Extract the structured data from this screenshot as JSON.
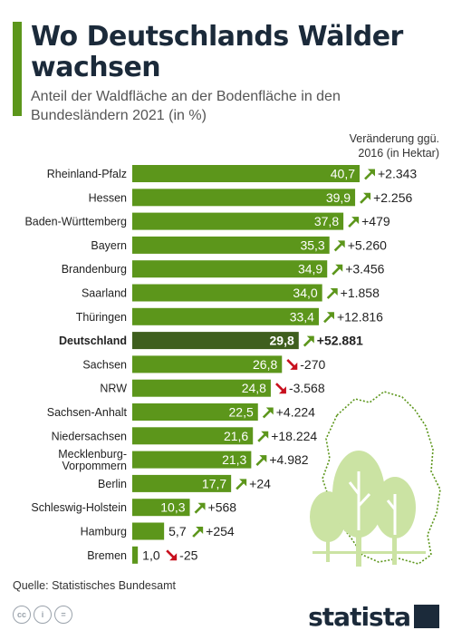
{
  "header": {
    "title": "Wo Deutschlands Wälder wachsen",
    "subtitle": "Anteil der Waldfläche an der Bodenfläche in den Bundesländern 2021 (in %)"
  },
  "legend": {
    "line1": "Veränderung ggü.",
    "line2": "2016 (in Hektar)"
  },
  "chart_data": {
    "type": "bar",
    "orientation": "horizontal",
    "categories": [
      "Rheinland-Pfalz",
      "Hessen",
      "Baden-Württemberg",
      "Bayern",
      "Brandenburg",
      "Saarland",
      "Thüringen",
      "Deutschland",
      "Sachsen",
      "NRW",
      "Sachsen-Anhalt",
      "Niedersachsen",
      "Mecklenburg-Vorpommern",
      "Berlin",
      "Schleswig-Holstein",
      "Hamburg",
      "Bremen"
    ],
    "values": [
      40.7,
      39.9,
      37.8,
      35.3,
      34.9,
      34.0,
      33.4,
      29.8,
      26.8,
      24.8,
      22.5,
      21.6,
      21.3,
      17.7,
      10.3,
      5.7,
      1.0
    ],
    "value_labels": [
      "40,7",
      "39,9",
      "37,8",
      "35,3",
      "34,9",
      "34,0",
      "33,4",
      "29,8",
      "26,8",
      "24,8",
      "22,5",
      "21,6",
      "21,3",
      "17,7",
      "10,3",
      "5,7",
      "1,0"
    ],
    "changes": [
      "+2.343",
      "+2.256",
      "+479",
      "+5.260",
      "+3.456",
      "+1.858",
      "+12.816",
      "+52.881",
      "-270",
      "-3.568",
      "+4.224",
      "+18.224",
      "+4.982",
      "+24",
      "+568",
      "+254",
      "-25"
    ],
    "change_values": [
      2343,
      2256,
      479,
      5260,
      3456,
      1858,
      12816,
      52881,
      -270,
      -3568,
      4224,
      18224,
      4982,
      24,
      568,
      254,
      -25
    ],
    "highlight": "Deutschland",
    "xlim": [
      0,
      40.7
    ],
    "colors": {
      "bar": "#5c961b",
      "highlight": "#3f5f1e",
      "up": "#5c961b",
      "down": "#c8101e"
    }
  },
  "footer": {
    "source": "Quelle: Statistisches Bundesamt",
    "logo": "statista"
  }
}
